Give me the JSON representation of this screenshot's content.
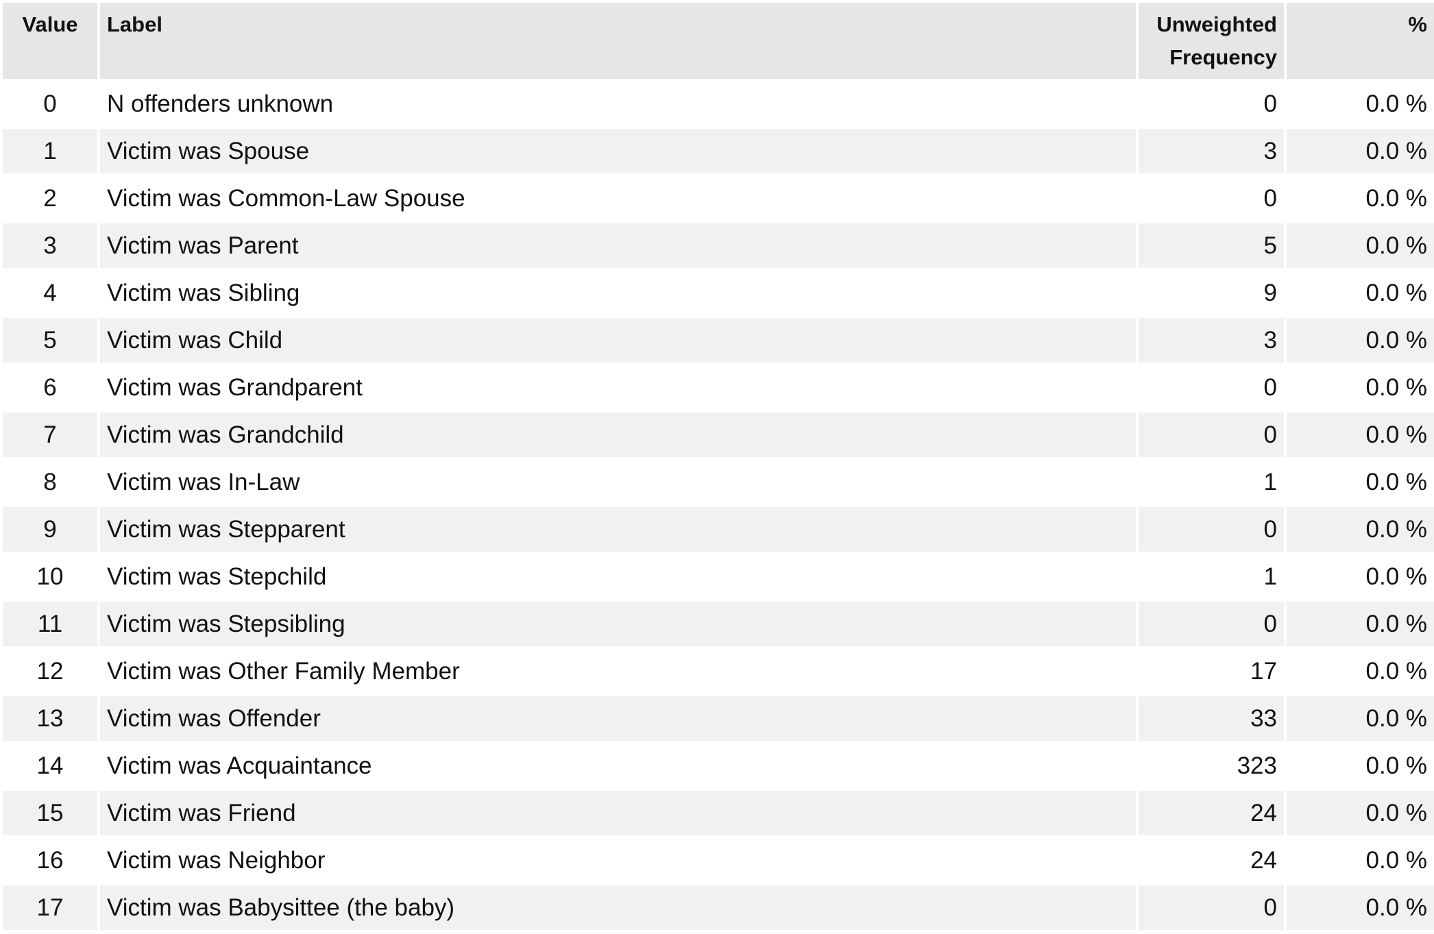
{
  "table": {
    "headers": {
      "value": "Value",
      "label": "Label",
      "freq_line1": "Unweighted",
      "freq_line2": "Frequency",
      "pct": "%"
    },
    "rows": [
      {
        "value": "0",
        "label": "N offenders unknown",
        "freq": "0",
        "pct": "0.0 %"
      },
      {
        "value": "1",
        "label": "Victim was Spouse",
        "freq": "3",
        "pct": "0.0 %"
      },
      {
        "value": "2",
        "label": "Victim was Common-Law Spouse",
        "freq": "0",
        "pct": "0.0 %"
      },
      {
        "value": "3",
        "label": "Victim was Parent",
        "freq": "5",
        "pct": "0.0 %"
      },
      {
        "value": "4",
        "label": "Victim was Sibling",
        "freq": "9",
        "pct": "0.0 %"
      },
      {
        "value": "5",
        "label": "Victim was Child",
        "freq": "3",
        "pct": "0.0 %"
      },
      {
        "value": "6",
        "label": "Victim was Grandparent",
        "freq": "0",
        "pct": "0.0 %"
      },
      {
        "value": "7",
        "label": "Victim was Grandchild",
        "freq": "0",
        "pct": "0.0 %"
      },
      {
        "value": "8",
        "label": "Victim was In-Law",
        "freq": "1",
        "pct": "0.0 %"
      },
      {
        "value": "9",
        "label": "Victim was Stepparent",
        "freq": "0",
        "pct": "0.0 %"
      },
      {
        "value": "10",
        "label": "Victim was Stepchild",
        "freq": "1",
        "pct": "0.0 %"
      },
      {
        "value": "11",
        "label": "Victim was Stepsibling",
        "freq": "0",
        "pct": "0.0 %"
      },
      {
        "value": "12",
        "label": "Victim was Other Family Member",
        "freq": "17",
        "pct": "0.0 %"
      },
      {
        "value": "13",
        "label": "Victim was Offender",
        "freq": "33",
        "pct": "0.0 %"
      },
      {
        "value": "14",
        "label": "Victim was Acquaintance",
        "freq": "323",
        "pct": "0.0 %"
      },
      {
        "value": "15",
        "label": "Victim was Friend",
        "freq": "24",
        "pct": "0.0 %"
      },
      {
        "value": "16",
        "label": "Victim was Neighbor",
        "freq": "24",
        "pct": "0.0 %"
      },
      {
        "value": "17",
        "label": "Victim was Babysittee (the baby)",
        "freq": "0",
        "pct": "0.0 %"
      }
    ]
  }
}
